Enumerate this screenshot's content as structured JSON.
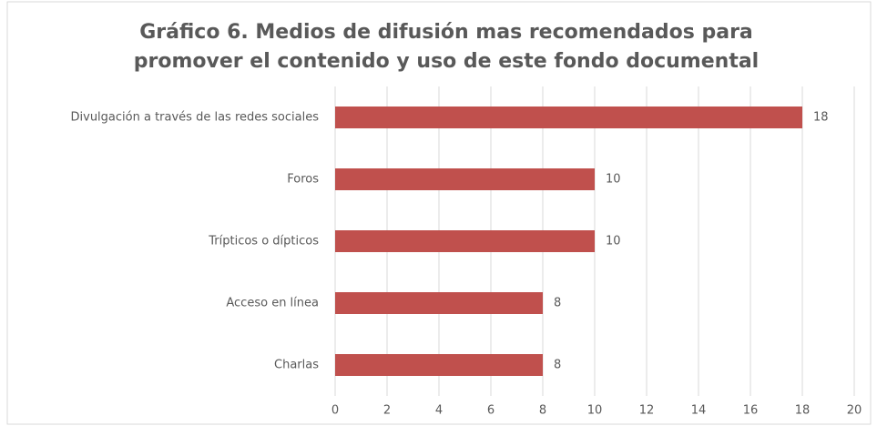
{
  "chart_data": {
    "type": "bar",
    "orientation": "horizontal",
    "title": [
      "Gráfico 6.  Medios de difusión mas recomendados para",
      "promover el contenido y uso de este fondo documental"
    ],
    "categories": [
      "Divulgación a través de las redes sociales",
      "Foros",
      "Trípticos o dípticos",
      "Acceso en línea",
      "Charlas"
    ],
    "values": [
      18,
      10,
      10,
      8,
      8
    ],
    "color": "#c0504d",
    "xlim": [
      0,
      20
    ],
    "xticks": [
      0,
      2,
      4,
      6,
      8,
      10,
      12,
      14,
      16,
      18,
      20
    ],
    "grid": true
  }
}
